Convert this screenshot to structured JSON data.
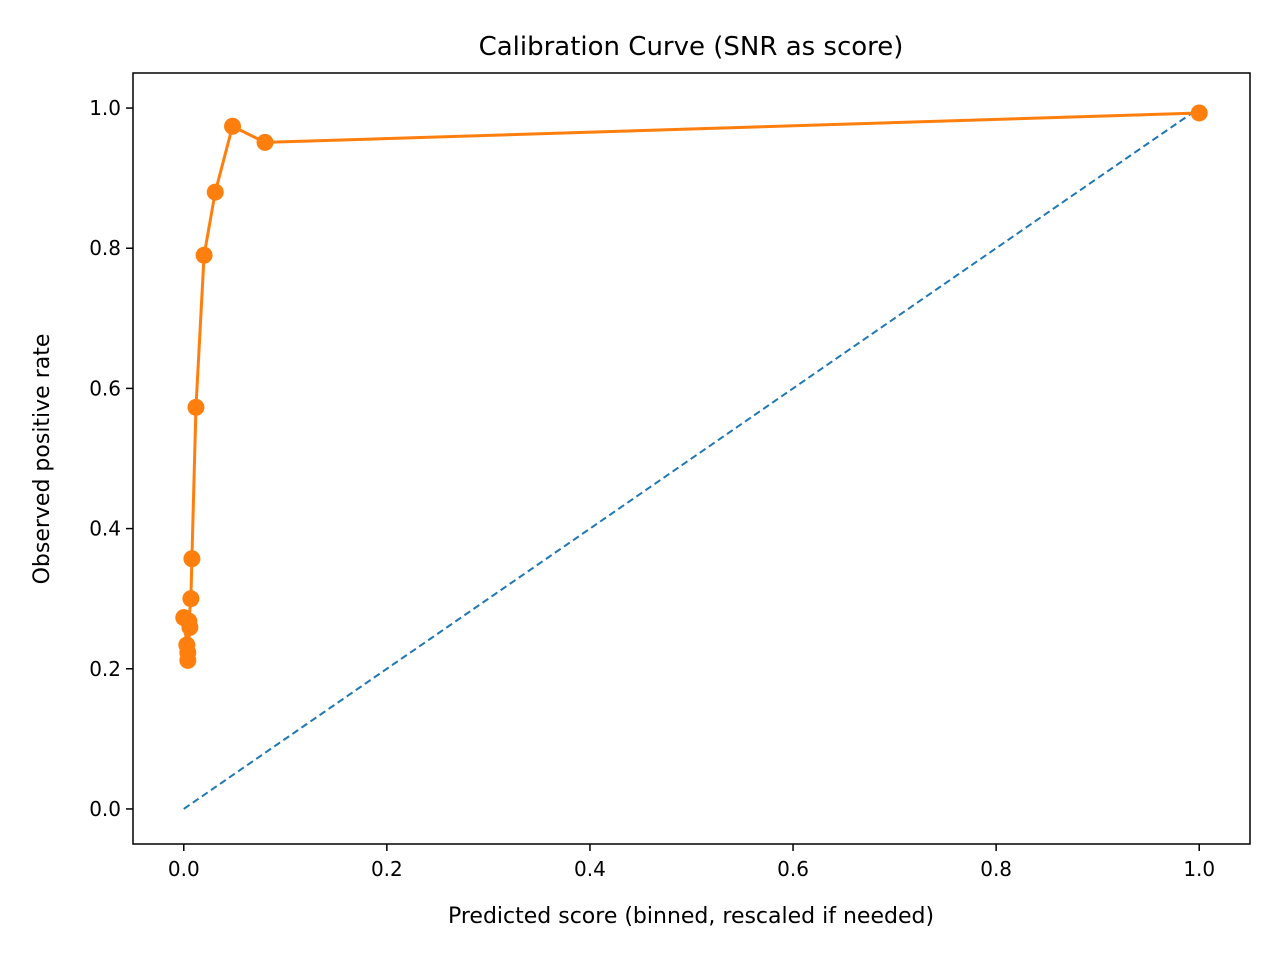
{
  "chart_data": {
    "type": "line",
    "title": "Calibration Curve (SNR as score)",
    "xlabel": "Predicted score (binned, rescaled if needed)",
    "ylabel": "Observed positive rate",
    "xlim": [
      -0.05,
      1.05
    ],
    "ylim": [
      -0.05,
      1.05
    ],
    "grid": false,
    "x_ticks": [
      0.0,
      0.2,
      0.4,
      0.6,
      0.8,
      1.0
    ],
    "y_ticks": [
      0.0,
      0.2,
      0.4,
      0.6,
      0.8,
      1.0
    ],
    "x_tick_labels": [
      "0.0",
      "0.2",
      "0.4",
      "0.6",
      "0.8",
      "1.0"
    ],
    "y_tick_labels": [
      "0.0",
      "0.2",
      "0.4",
      "0.6",
      "0.8",
      "1.0"
    ],
    "series": [
      {
        "style": "dashed",
        "color": "#1f77b4",
        "x": [
          0.0,
          1.0
        ],
        "y": [
          0.0,
          1.0
        ]
      },
      {
        "style": "line-markers",
        "color": "#ff7f0e",
        "x": [
          0.0,
          0.003,
          0.004,
          0.004,
          0.006,
          0.005,
          0.007,
          0.008,
          0.012,
          0.02,
          0.031,
          0.048,
          0.08,
          1.0
        ],
        "y": [
          0.273,
          0.234,
          0.212,
          0.223,
          0.259,
          0.268,
          0.3,
          0.357,
          0.573,
          0.79,
          0.88,
          0.974,
          0.951,
          0.993
        ]
      }
    ]
  }
}
